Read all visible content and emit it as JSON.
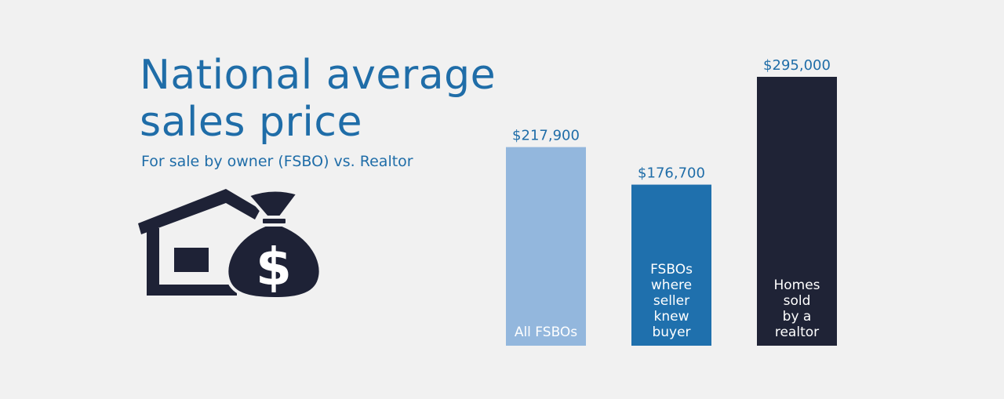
{
  "title": "National average sales price",
  "subtitle": "For sale by owner (FSBO) vs. Realtor",
  "icons": [
    "house-icon",
    "money-bag-icon"
  ],
  "colors": {
    "background": "#f1f1f1",
    "title": "#1f6da8",
    "icon": "#1e2236",
    "value_label": "#1f6da8",
    "bar_text": "#ffffff"
  },
  "chart_data": {
    "type": "bar",
    "categories": [
      [
        "All FSBOs"
      ],
      [
        "FSBOs",
        "where",
        "seller",
        "knew",
        "buyer"
      ],
      [
        "Homes",
        "sold",
        "by a",
        "realtor"
      ]
    ],
    "values": [
      217900,
      176700,
      295000
    ],
    "value_labels": [
      "$217,900",
      "$176,700",
      "$295,000"
    ],
    "bar_colors": [
      "#93b7dd",
      "#1f70ad",
      "#1f2336"
    ],
    "ylim": [
      0,
      300000
    ],
    "grid": false,
    "axes_visible": false
  }
}
